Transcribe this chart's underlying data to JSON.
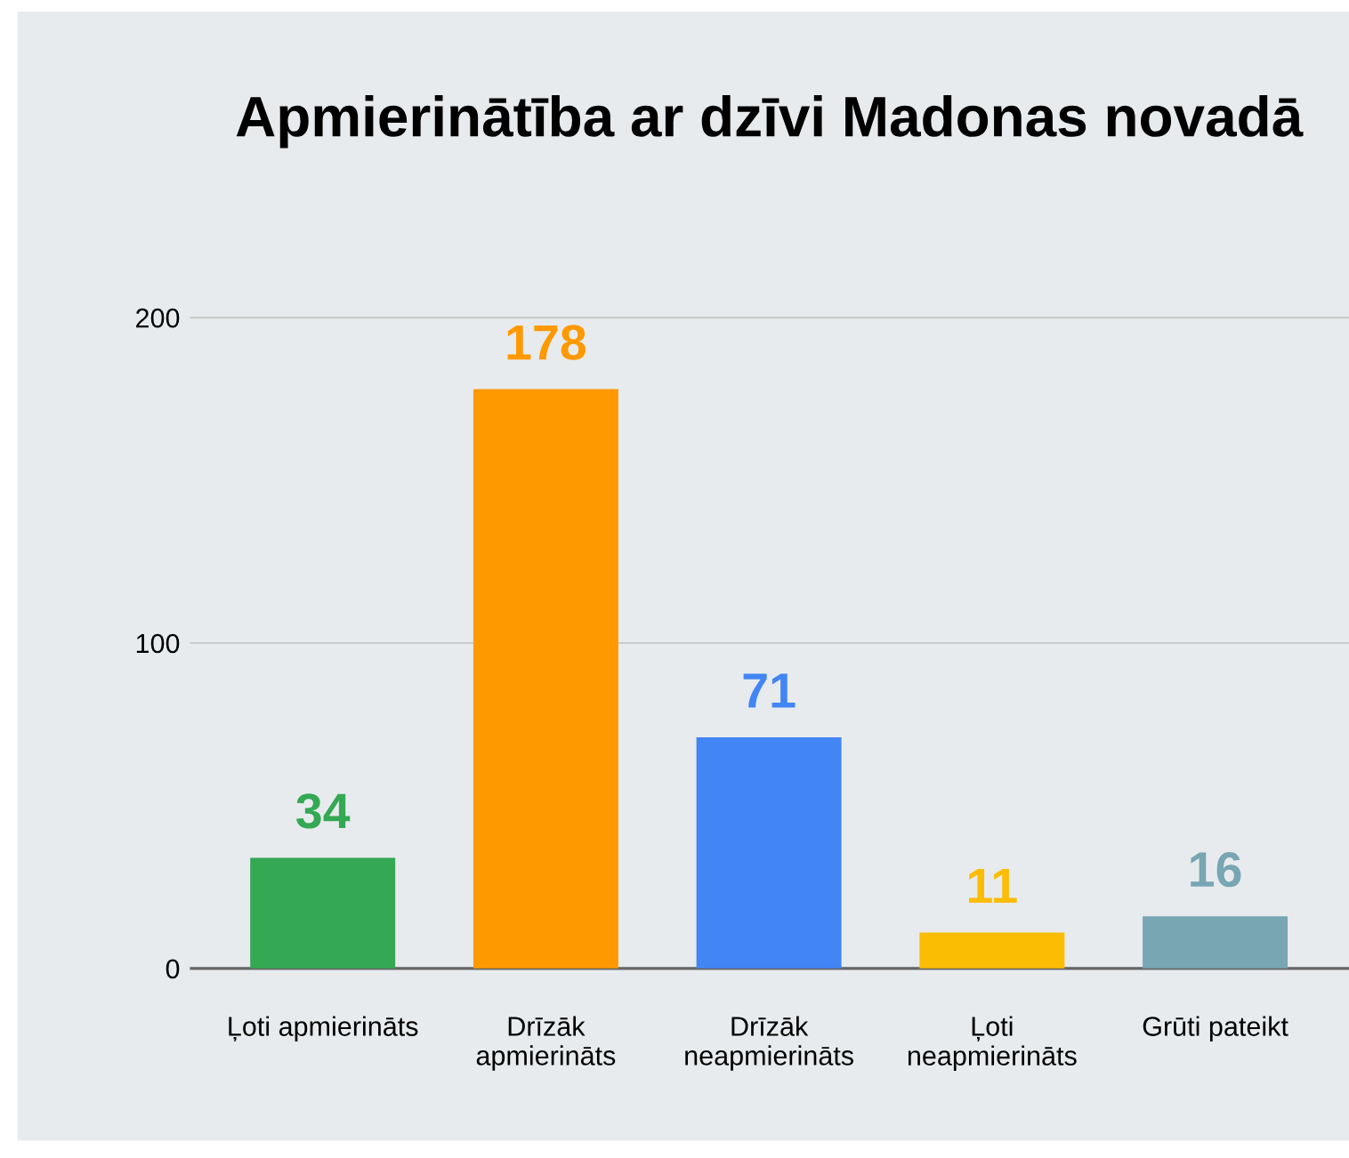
{
  "chart_data": {
    "type": "bar",
    "title": "Apmierinātība ar dzīvi Madonas novadā",
    "categories": [
      "Ļoti apmierināts",
      "Drīzāk\napmierināts",
      "Drīzāk\nneapmierināts",
      "Ļoti\nneapmierināts",
      "Grūti pateikt"
    ],
    "values": [
      34,
      178,
      71,
      11,
      16
    ],
    "colors": [
      "#34a853",
      "#ff9900",
      "#4285f4",
      "#fbbc04",
      "#78a6b2"
    ],
    "ylim": [
      -12,
      230
    ],
    "yticks": [
      0,
      100,
      200
    ],
    "grid": "y",
    "data_labels": true
  }
}
